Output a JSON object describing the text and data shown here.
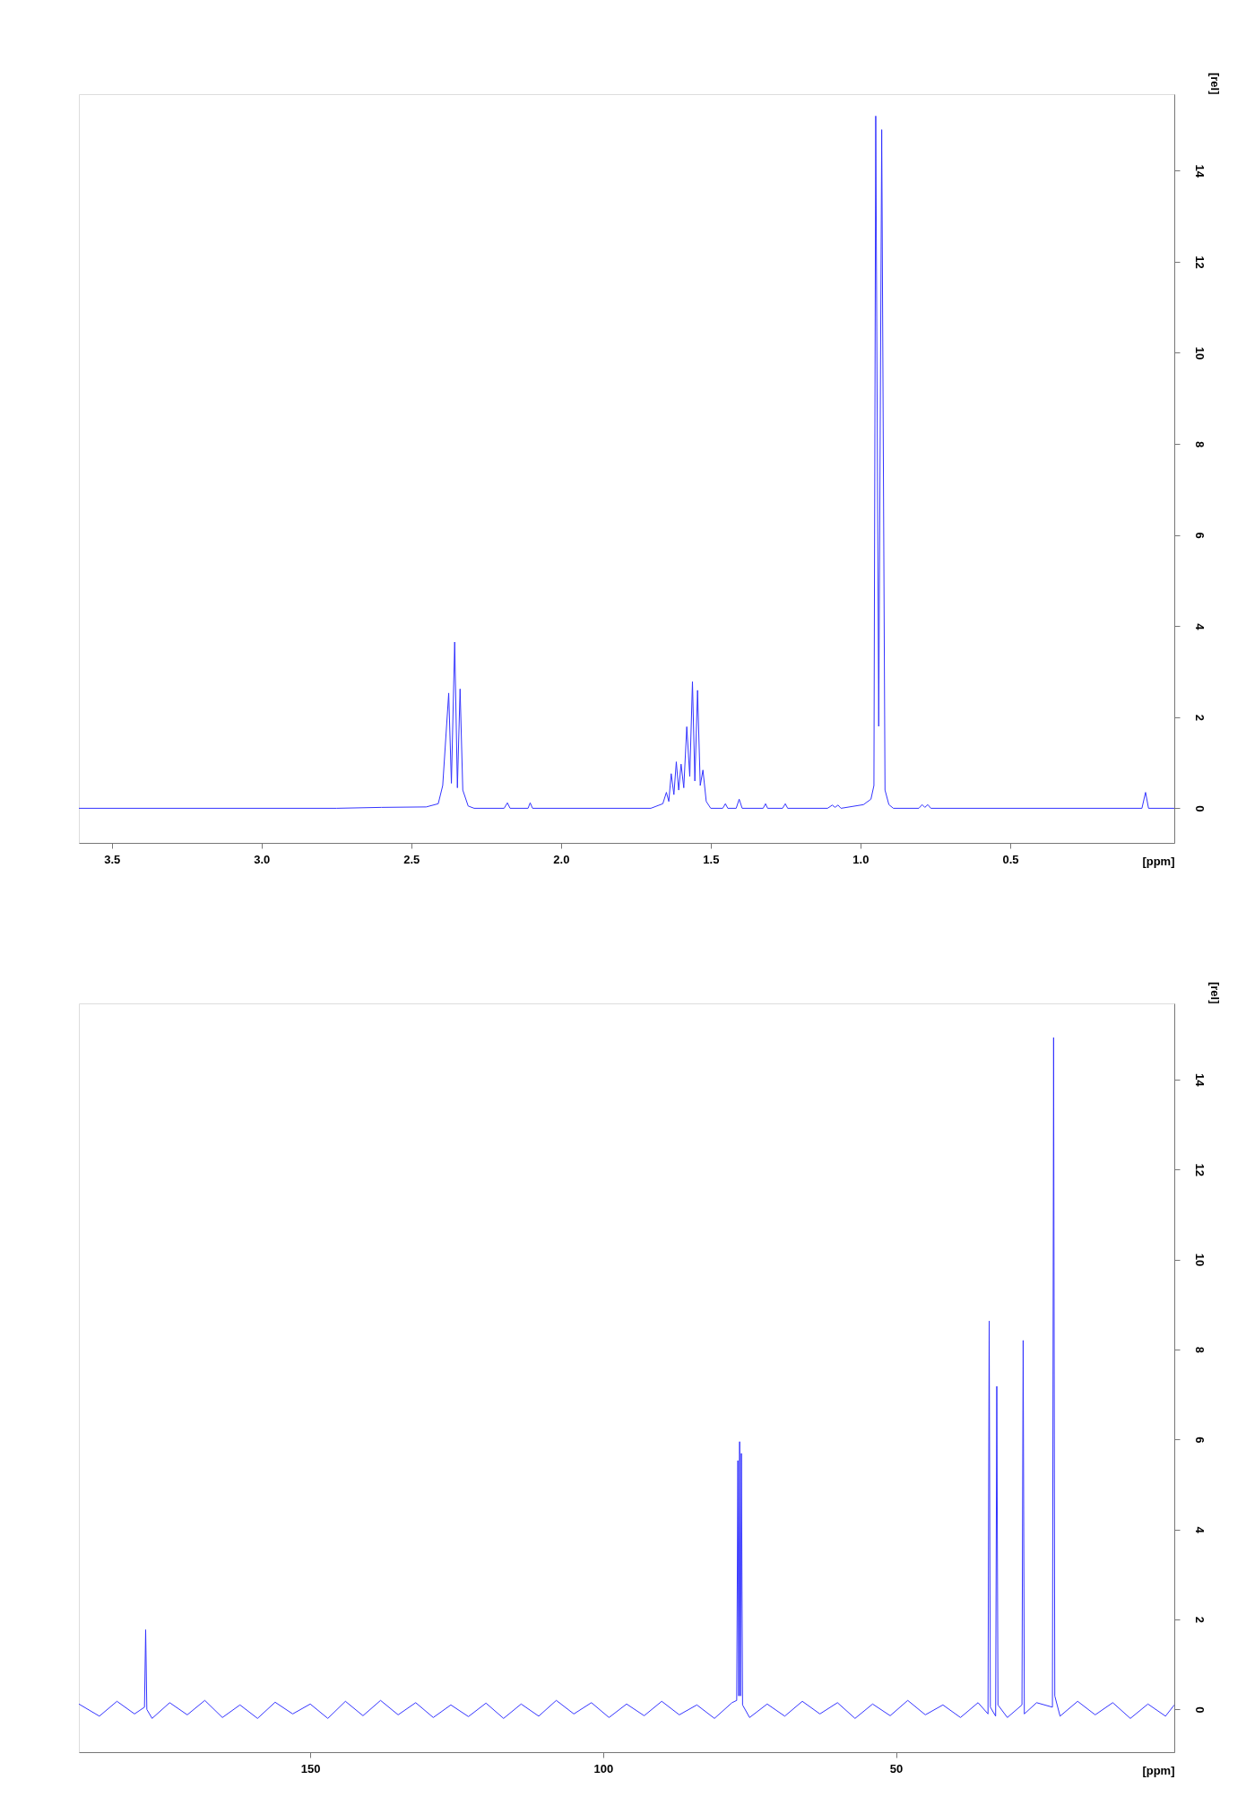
{
  "chart_data": [
    {
      "type": "line",
      "xlabel": "[ppm]",
      "ylabel": "[rel]",
      "xlim": [
        3.61,
        -0.048
      ],
      "xticks": [
        {
          "value": 3.5,
          "label": "3.5"
        },
        {
          "value": 3.0,
          "label": "3.0"
        },
        {
          "value": 2.5,
          "label": "2.5"
        },
        {
          "value": 2.0,
          "label": "2.0"
        },
        {
          "value": 1.5,
          "label": "1.5"
        },
        {
          "value": 1.0,
          "label": "1.0"
        },
        {
          "value": 0.5,
          "label": "0.5"
        }
      ],
      "ylim": [
        -0.76,
        15.68
      ],
      "yticks": [
        0,
        2,
        4,
        6,
        8,
        10,
        12,
        14
      ],
      "series": [
        {
          "color": "#3333ff",
          "x": [
            3.61,
            2.75,
            2.6,
            2.45,
            2.41,
            2.395,
            2.375,
            2.366,
            2.355,
            2.346,
            2.337,
            2.328,
            2.31,
            2.29,
            2.19,
            2.179,
            2.17,
            2.11,
            2.103,
            2.095,
            1.7,
            1.66,
            1.648,
            1.64,
            1.632,
            1.623,
            1.615,
            1.607,
            1.599,
            1.59,
            1.58,
            1.57,
            1.561,
            1.553,
            1.544,
            1.535,
            1.526,
            1.515,
            1.5,
            1.46,
            1.451,
            1.443,
            1.415,
            1.405,
            1.395,
            1.325,
            1.317,
            1.31,
            1.26,
            1.251,
            1.243,
            1.11,
            1.094,
            1.085,
            1.075,
            1.065,
            0.99,
            0.965,
            0.955,
            0.949,
            0.939,
            0.929,
            0.918,
            0.905,
            0.89,
            0.805,
            0.794,
            0.785,
            0.775,
            0.765,
            0.06,
            0.048,
            0.038,
            -0.048
          ],
          "values": [
            0,
            0,
            0.02,
            0.03,
            0.1,
            0.5,
            2.53,
            0.55,
            3.65,
            0.45,
            2.62,
            0.4,
            0.05,
            0,
            0,
            0.12,
            0,
            0,
            0.12,
            0,
            0,
            0.1,
            0.35,
            0.15,
            0.76,
            0.3,
            1.02,
            0.4,
            0.97,
            0.45,
            1.79,
            0.7,
            2.78,
            0.6,
            2.59,
            0.5,
            0.84,
            0.15,
            0,
            0,
            0.1,
            0,
            0,
            0.2,
            0,
            0,
            0.1,
            0,
            0,
            0.1,
            0,
            0,
            0.07,
            0.02,
            0.07,
            0,
            0.08,
            0.2,
            0.5,
            15.2,
            1.8,
            14.9,
            0.4,
            0.08,
            0,
            0,
            0.08,
            0.02,
            0.08,
            0,
            0,
            0.35,
            0,
            0
          ]
        }
      ]
    },
    {
      "type": "line",
      "xlabel": "[ppm]",
      "ylabel": "[rel]",
      "xlim": [
        189.5,
        2.5
      ],
      "xticks": [
        150,
        100,
        50
      ],
      "ylim": [
        -0.95,
        15.69
      ],
      "yticks": [
        0,
        2,
        4,
        6,
        8,
        10,
        12,
        14
      ],
      "series": [
        {
          "color": "#3333ff",
          "x": [
            189.5,
            186,
            183,
            180,
            178.3,
            178.1,
            177.9,
            177,
            174,
            171,
            168,
            165,
            162,
            159,
            156,
            153,
            150,
            147,
            144,
            141,
            138,
            135,
            132,
            129,
            126,
            123,
            120,
            117,
            114,
            111,
            108,
            105,
            102,
            99,
            96,
            93,
            90,
            87,
            84,
            81,
            78,
            77.2,
            77.0,
            76.85,
            76.7,
            76.55,
            76.4,
            76.2,
            75,
            72,
            69,
            66,
            63,
            60,
            57,
            54,
            51,
            48,
            45,
            42,
            39,
            36,
            34.3,
            34.1,
            33.9,
            33.0,
            32.8,
            32.6,
            31,
            28.5,
            28.3,
            28.1,
            26,
            23.3,
            23.1,
            22.9,
            22,
            19,
            16,
            13,
            10,
            7,
            4,
            2.5
          ],
          "values": [
            0.12,
            -0.15,
            0.18,
            -0.1,
            0.05,
            1.77,
            0.0,
            -0.2,
            0.15,
            -0.12,
            0.2,
            -0.18,
            0.1,
            -0.2,
            0.16,
            -0.1,
            0.12,
            -0.2,
            0.18,
            -0.14,
            0.2,
            -0.12,
            0.15,
            -0.18,
            0.1,
            -0.16,
            0.14,
            -0.2,
            0.12,
            -0.15,
            0.2,
            -0.1,
            0.15,
            -0.18,
            0.12,
            -0.14,
            0.18,
            -0.12,
            0.1,
            -0.2,
            0.15,
            0.2,
            5.53,
            0.3,
            5.95,
            0.3,
            5.69,
            0.1,
            -0.18,
            0.12,
            -0.15,
            0.18,
            -0.1,
            0.15,
            -0.2,
            0.12,
            -0.14,
            0.2,
            -0.12,
            0.1,
            -0.18,
            0.15,
            -0.1,
            8.63,
            0.05,
            -0.15,
            7.18,
            0.1,
            -0.18,
            0.1,
            8.2,
            -0.1,
            0.15,
            0.05,
            14.93,
            0.3,
            -0.15,
            0.18,
            -0.12,
            0.15,
            -0.2,
            0.12,
            -0.15,
            0.1
          ]
        }
      ]
    }
  ]
}
